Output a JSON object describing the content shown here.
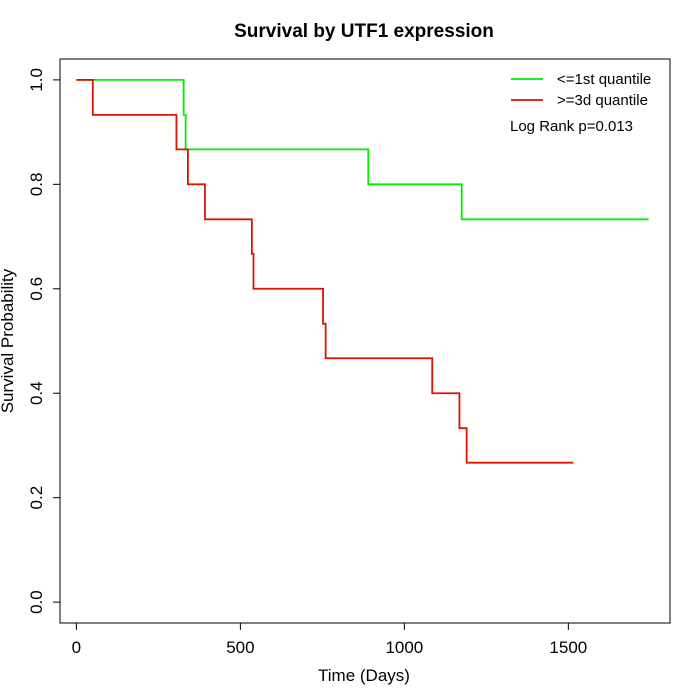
{
  "chart_data": {
    "type": "line",
    "title": "Survival by UTF1 expression",
    "xlabel": "Time (Days)",
    "ylabel": "Survival Probability",
    "xlim": [
      -50,
      1810
    ],
    "ylim": [
      -0.04,
      1.04
    ],
    "x_ticks": [
      0,
      500,
      1000,
      1500
    ],
    "x_tick_labels": [
      "0",
      "500",
      "1000",
      "1500"
    ],
    "y_ticks": [
      0.0,
      0.2,
      0.4,
      0.6,
      0.8,
      1.0
    ],
    "y_tick_labels": [
      "0.0",
      "0.2",
      "0.4",
      "0.6",
      "0.8",
      "1.0"
    ],
    "grid": false,
    "legend_position": "top-right",
    "annotation": "Log Rank p=0.013",
    "series": [
      {
        "name": "<=1st quantile",
        "color": "#00ee00",
        "step": true,
        "x": [
          0,
          327,
          333,
          890,
          1175,
          1745
        ],
        "y": [
          1.0,
          0.933,
          0.867,
          0.8,
          0.733,
          0.733
        ]
      },
      {
        "name": ">=3d quantile",
        "color": "#dd1100",
        "step": true,
        "x": [
          0,
          50,
          305,
          340,
          392,
          535,
          540,
          752,
          760,
          1085,
          1168,
          1190,
          1515
        ],
        "y": [
          1.0,
          0.933,
          0.867,
          0.8,
          0.733,
          0.667,
          0.6,
          0.533,
          0.467,
          0.4,
          0.333,
          0.267,
          0.267
        ]
      }
    ]
  }
}
